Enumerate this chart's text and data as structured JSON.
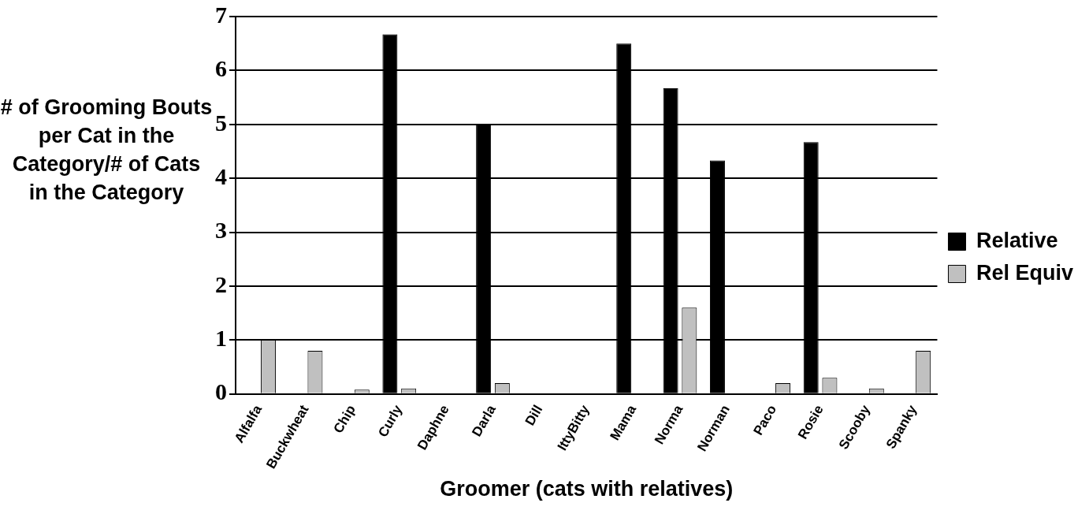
{
  "chart_data": {
    "type": "bar",
    "xlabel": "Groomer (cats with relatives)",
    "ylabel": "# of Grooming Bouts per Cat in the Category/# of Cats in the Category",
    "categories": [
      "Alfalfa",
      "Buckwheat",
      "Chip",
      "Curly",
      "Daphne",
      "Darla",
      "Dill",
      "IttyBitty",
      "Mama",
      "Norma",
      "Norman",
      "Paco",
      "Rosie",
      "Scooby",
      "Spanky"
    ],
    "series": [
      {
        "name": "Relative",
        "color": "#000000",
        "values": [
          0,
          0,
          0,
          6.67,
          0,
          5,
          0,
          0,
          6.5,
          5.67,
          4.33,
          0,
          4.67,
          0,
          0
        ]
      },
      {
        "name": "Rel Equiv",
        "color": "#c0c0c0",
        "values": [
          1,
          0.8,
          0.08,
          0.1,
          0,
          0.2,
          0,
          0,
          0,
          1.6,
          0,
          0.2,
          0.3,
          0.1,
          0.8
        ]
      }
    ],
    "ylim": [
      0,
      7
    ],
    "yticks": [
      0,
      1,
      2,
      3,
      4,
      5,
      6,
      7
    ],
    "grid": "y",
    "legend": "right"
  }
}
